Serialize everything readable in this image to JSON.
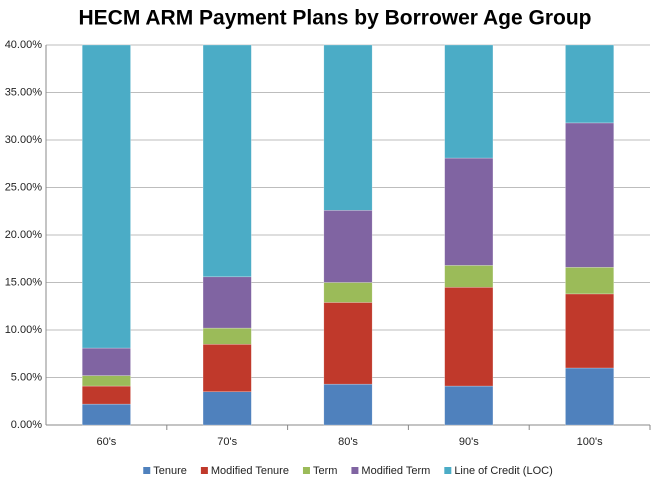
{
  "chart_data": {
    "type": "stacked-bar",
    "title": "HECM ARM Payment Plans by Borrower Age Group",
    "categories": [
      "60's",
      "70's",
      "80's",
      "90's",
      "100's"
    ],
    "series": [
      {
        "name": "Tenure",
        "color": "#4f81bd",
        "values": [
          2.2,
          3.5,
          4.3,
          4.1,
          6.0
        ]
      },
      {
        "name": "Modified Tenure",
        "color": "#c0392b",
        "values": [
          1.9,
          5.0,
          8.6,
          10.4,
          7.8
        ]
      },
      {
        "name": "Term",
        "color": "#9bbb59",
        "values": [
          1.1,
          1.7,
          2.1,
          2.3,
          2.8
        ]
      },
      {
        "name": "Modified Term",
        "color": "#8064a2",
        "values": [
          2.9,
          5.4,
          7.6,
          11.3,
          15.2
        ]
      },
      {
        "name": "Line of Credit (LOC)",
        "color": "#4bacc6",
        "values": [
          31.9,
          24.4,
          17.4,
          11.9,
          8.2
        ]
      }
    ],
    "ylim": [
      0,
      40
    ],
    "yticks": [
      {
        "value": 0,
        "label": "0.00%"
      },
      {
        "value": 5,
        "label": "5.00%"
      },
      {
        "value": 10,
        "label": "10.00%"
      },
      {
        "value": 15,
        "label": "15.00%"
      },
      {
        "value": 20,
        "label": "20.00%"
      },
      {
        "value": 25,
        "label": "25.00%"
      },
      {
        "value": 30,
        "label": "30.00%"
      },
      {
        "value": 35,
        "label": "35.00%"
      },
      {
        "value": 40,
        "label": "40.00%"
      }
    ],
    "grid": true,
    "legend": "bottom"
  }
}
